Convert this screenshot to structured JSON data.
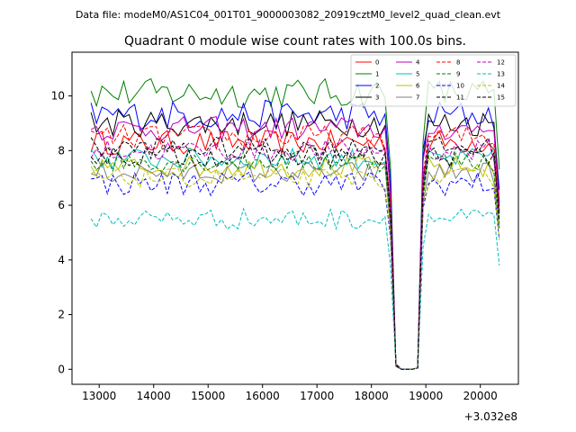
{
  "figure": {
    "suptitle": "Data file: modeM0/AS1C04_001T01_9000003082_20919cztM0_level2_quad_clean.evt",
    "title": "Quadrant 0 module wise count rates with 100.0s bins.",
    "x_offset_label": "+3.032e8"
  },
  "chart_data": {
    "type": "line",
    "title": "Quadrant 0 module wise count rates with 100.0s bins.",
    "xlabel": "",
    "ylabel": "",
    "xlim": [
      12500,
      20700
    ],
    "ylim": [
      -0.55,
      11.6
    ],
    "x_offset": 303200000,
    "x_ticks": [
      13000,
      14000,
      15000,
      16000,
      17000,
      18000,
      19000,
      20000
    ],
    "x_tick_labels": [
      "13000",
      "14000",
      "15000",
      "16000",
      "17000",
      "18000",
      "19000",
      "20000"
    ],
    "y_ticks": [
      0,
      2,
      4,
      6,
      8,
      10
    ],
    "y_tick_labels": [
      "0",
      "2",
      "4",
      "6",
      "8",
      "10"
    ],
    "x_start": 12850,
    "x_step": 100,
    "gap_start_x": 18450,
    "gap_end_x": 18850,
    "legend_position": "top-right",
    "series": [
      {
        "name": "0",
        "color": "#ff0000",
        "dash": "solid",
        "base": 8.3,
        "amp": 0.45
      },
      {
        "name": "1",
        "color": "#008000",
        "dash": "solid",
        "base": 10.1,
        "amp": 0.55
      },
      {
        "name": "2",
        "color": "#0000ff",
        "dash": "solid",
        "base": 9.3,
        "amp": 0.55
      },
      {
        "name": "3",
        "color": "#000000",
        "dash": "solid",
        "base": 9.0,
        "amp": 0.5
      },
      {
        "name": "4",
        "color": "#bf00bf",
        "dash": "solid",
        "base": 8.8,
        "amp": 0.45
      },
      {
        "name": "5",
        "color": "#00bfbf",
        "dash": "solid",
        "base": 7.7,
        "amp": 0.4
      },
      {
        "name": "6",
        "color": "#bfbf00",
        "dash": "solid",
        "base": 7.4,
        "amp": 0.4
      },
      {
        "name": "7",
        "color": "#808080",
        "dash": "solid",
        "base": 7.2,
        "amp": 0.4
      },
      {
        "name": "8",
        "color": "#ff0000",
        "dash": "dashed",
        "base": 8.5,
        "amp": 0.45
      },
      {
        "name": "9",
        "color": "#008000",
        "dash": "dashed",
        "base": 7.6,
        "amp": 0.4
      },
      {
        "name": "10",
        "color": "#0000ff",
        "dash": "dashed",
        "base": 6.8,
        "amp": 0.45
      },
      {
        "name": "11",
        "color": "#000000",
        "dash": "dashed",
        "base": 8.1,
        "amp": 0.4
      },
      {
        "name": "12",
        "color": "#bf00bf",
        "dash": "dashed",
        "base": 8.0,
        "amp": 0.4
      },
      {
        "name": "13",
        "color": "#00bfbf",
        "dash": "dashed",
        "base": 5.5,
        "amp": 0.4
      },
      {
        "name": "14",
        "color": "#bfbf00",
        "dash": "dashed",
        "base": 7.0,
        "amp": 0.35
      },
      {
        "name": "15",
        "color": "#000000",
        "dash": "dashed",
        "base": 7.8,
        "amp": 0.4
      }
    ]
  }
}
